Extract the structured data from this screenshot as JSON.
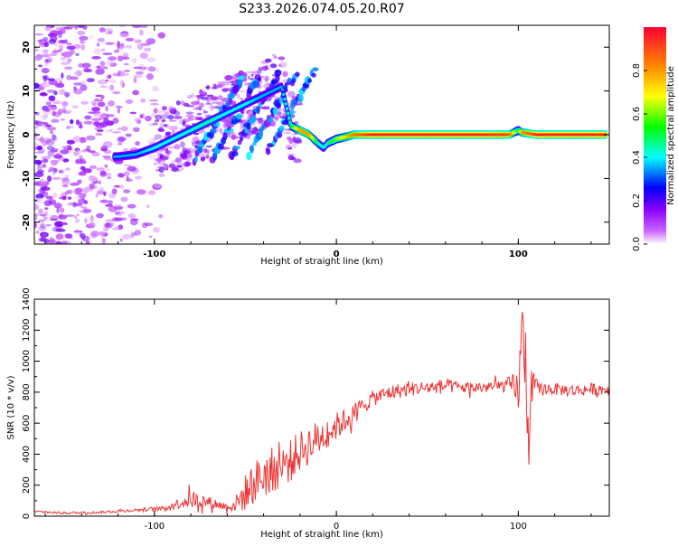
{
  "title": "S233.2026.074.05.20.R07",
  "chart_data": [
    {
      "type": "heatmap",
      "title": "S233.2026.074.05.20.R07",
      "xlabel": "Height of straight line (km)",
      "ylabel": "Frequency (Hz)",
      "xlim": [
        -166,
        150
      ],
      "ylim": [
        -25,
        25
      ],
      "xticks": [
        -100,
        0,
        100
      ],
      "yticks": [
        -20,
        -10,
        0,
        10,
        20
      ],
      "colorbar": {
        "label": "Normalized spectral amplitude",
        "range": [
          0,
          1
        ],
        "ticks": [
          0.0,
          0.2,
          0.4,
          0.6,
          0.8
        ],
        "tick_labels": [
          "0.0",
          "0.2",
          "0.4",
          "0.6",
          "0.8"
        ],
        "colors": [
          "#ffffff",
          "#cc66ff",
          "#8800ff",
          "#0000ff",
          "#00ffff",
          "#00ff00",
          "#ffff00",
          "#ff8800",
          "#ff0033"
        ]
      },
      "ridge": {
        "x": [
          -120,
          -110,
          -100,
          -90,
          -80,
          -70,
          -60,
          -50,
          -40,
          -30,
          -25,
          -20,
          -15,
          -10,
          -7,
          -5,
          0,
          10,
          20,
          40,
          60,
          80,
          95,
          100,
          102,
          110,
          130,
          148
        ],
        "freq": [
          -5,
          -4.5,
          -3,
          -1,
          1,
          3,
          5,
          7,
          9,
          11,
          2,
          1,
          0,
          -2,
          -3,
          -2,
          -1,
          0,
          0,
          0,
          0,
          0,
          0,
          1,
          0.5,
          0,
          0,
          0
        ],
        "amp": [
          0.35,
          0.35,
          0.4,
          0.4,
          0.42,
          0.45,
          0.4,
          0.4,
          0.35,
          0.35,
          0.5,
          0.8,
          0.8,
          0.45,
          0.4,
          0.45,
          0.6,
          0.85,
          0.95,
          0.95,
          0.95,
          0.95,
          0.9,
          0.5,
          0.8,
          0.95,
          0.95,
          0.95
        ]
      }
    },
    {
      "type": "line",
      "xlabel": "Height of straight line (km)",
      "ylabel": "SNR (10 * v/v)",
      "xlim": [
        -166,
        150
      ],
      "ylim": [
        0,
        1400
      ],
      "xticks": [
        -100,
        0,
        100
      ],
      "yticks": [
        0,
        200,
        400,
        600,
        800,
        1000,
        1200,
        1400
      ],
      "color": "#ee3333",
      "series": [
        {
          "name": "SNR",
          "x": [
            -166,
            -150,
            -130,
            -110,
            -95,
            -85,
            -80,
            -70,
            -60,
            -55,
            -50,
            -45,
            -40,
            -35,
            -30,
            -25,
            -20,
            -15,
            -10,
            -5,
            0,
            5,
            10,
            15,
            20,
            25,
            30,
            40,
            50,
            60,
            70,
            80,
            90,
            95,
            100,
            102,
            104,
            106,
            108,
            112,
            120,
            130,
            140,
            150
          ],
          "values": [
            30,
            20,
            25,
            40,
            50,
            90,
            110,
            90,
            60,
            80,
            150,
            220,
            260,
            300,
            320,
            360,
            420,
            460,
            500,
            540,
            580,
            620,
            660,
            720,
            760,
            780,
            800,
            820,
            830,
            840,
            830,
            830,
            840,
            850,
            800,
            1200,
            1000,
            500,
            850,
            820,
            820,
            810,
            820,
            820
          ],
          "noise": [
            8,
            8,
            8,
            10,
            15,
            40,
            60,
            40,
            25,
            60,
            120,
            140,
            150,
            150,
            140,
            140,
            130,
            130,
            120,
            100,
            90,
            80,
            70,
            60,
            50,
            50,
            50,
            45,
            45,
            45,
            40,
            40,
            40,
            50,
            150,
            200,
            300,
            250,
            60,
            45,
            40,
            40,
            40,
            40
          ]
        }
      ]
    }
  ]
}
